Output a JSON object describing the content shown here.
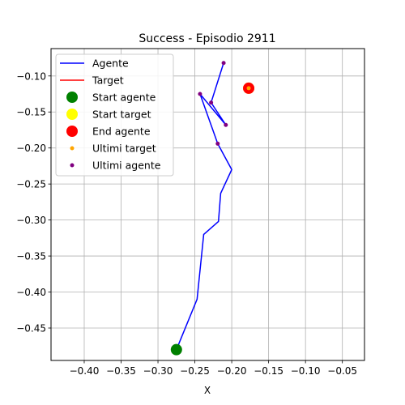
{
  "chart_data": {
    "type": "line",
    "title": "Success - Episodio 2911",
    "xlabel": "X",
    "ylabel": "",
    "xlim": [
      -0.445,
      -0.02
    ],
    "ylim": [
      -0.495,
      -0.062
    ],
    "x_ticks": [
      -0.4,
      -0.35,
      -0.3,
      -0.25,
      -0.2,
      -0.15,
      -0.1,
      -0.05
    ],
    "y_ticks": [
      -0.1,
      -0.15,
      -0.2,
      -0.25,
      -0.3,
      -0.35,
      -0.4,
      -0.45
    ],
    "x_tick_labels": [
      "−0.40",
      "−0.35",
      "−0.30",
      "−0.25",
      "−0.20",
      "−0.15",
      "−0.10",
      "−0.05"
    ],
    "y_tick_labels": [
      "−0.10",
      "−0.15",
      "−0.20",
      "−0.25",
      "−0.30",
      "−0.35",
      "−0.40",
      "−0.45"
    ],
    "grid": true,
    "legend_position": "upper-left",
    "series": [
      {
        "name": "Agente",
        "kind": "line",
        "color": "#0000ff",
        "x": [
          -0.275,
          -0.247,
          -0.238,
          -0.218,
          -0.215,
          -0.2,
          -0.219,
          -0.243,
          -0.208,
          -0.228,
          -0.211
        ],
        "y": [
          -0.48,
          -0.41,
          -0.32,
          -0.302,
          -0.263,
          -0.23,
          -0.194,
          -0.125,
          -0.168,
          -0.137,
          -0.082
        ]
      },
      {
        "name": "Target",
        "kind": "line",
        "color": "#ff0000",
        "x": [
          -0.177,
          -0.177
        ],
        "y": [
          -0.117,
          -0.117
        ]
      },
      {
        "name": "Start agente",
        "kind": "marker",
        "color": "#008000",
        "size": "large",
        "x": [
          -0.275
        ],
        "y": [
          -0.48
        ]
      },
      {
        "name": "Start target",
        "kind": "marker",
        "color": "#ffff00",
        "size": "large",
        "x": [
          -0.177
        ],
        "y": [
          -0.117
        ]
      },
      {
        "name": "End agente",
        "kind": "marker",
        "color": "#ff0000",
        "size": "large",
        "x": [
          -0.177
        ],
        "y": [
          -0.117
        ]
      },
      {
        "name": "Ultimi target",
        "kind": "marker",
        "color": "#ffa500",
        "size": "small",
        "x": [
          -0.177
        ],
        "y": [
          -0.117
        ]
      },
      {
        "name": "Ultimi agente",
        "kind": "marker",
        "color": "#800080",
        "size": "small",
        "x": [
          -0.211,
          -0.228,
          -0.208,
          -0.243,
          -0.219
        ],
        "y": [
          -0.082,
          -0.137,
          -0.168,
          -0.125,
          -0.194
        ]
      }
    ]
  }
}
